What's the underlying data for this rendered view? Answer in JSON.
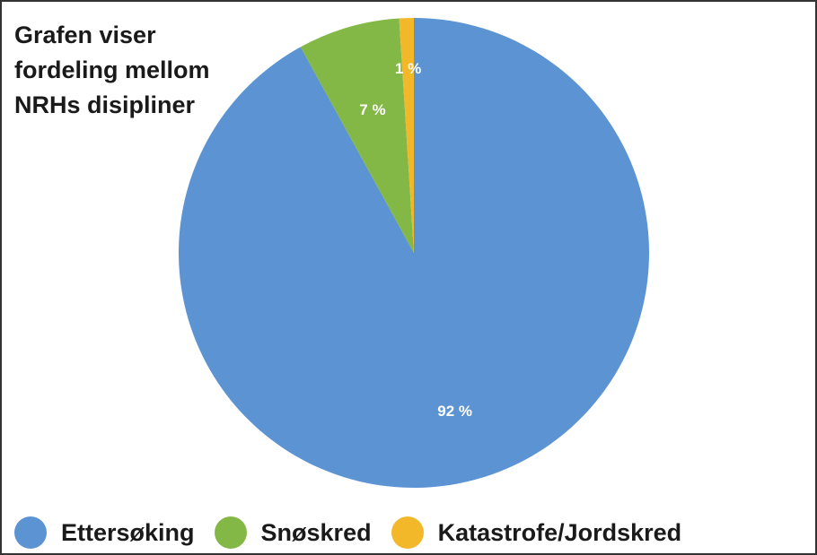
{
  "title": "Grafen viser fordeling mellom NRHs disipliner",
  "chart_data": {
    "type": "pie",
    "title": "Grafen viser fordeling mellom NRHs disipliner",
    "categories": [
      "Ettersøking",
      "Snøskred",
      "Katastrofe/Jordskred"
    ],
    "values": [
      92,
      7,
      1
    ],
    "labels": [
      "92 %",
      "7 %",
      "1 %"
    ],
    "colors": [
      "#5b93d3",
      "#84b846",
      "#f2b82a"
    ],
    "legend": "bottom"
  }
}
